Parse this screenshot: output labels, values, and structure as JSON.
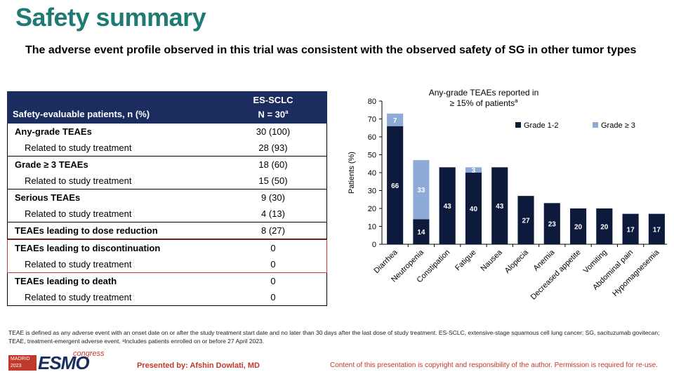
{
  "header": {
    "title": "Safety summary",
    "subtitle": "The adverse event profile observed in this trial was consistent with the observed safety of SG in other tumor types"
  },
  "table": {
    "label_header": "Safety-evaluable patients, n (%)",
    "col_header_line1": "ES-SCLC",
    "col_header_line2": "N = 30",
    "col_header_sup": "a",
    "groups": [
      {
        "highlight": false,
        "rows": [
          {
            "label": "Any-grade TEAEs",
            "value": "30 (100)",
            "type": "main"
          },
          {
            "label": "Related to study treatment",
            "value": "28 (93)",
            "type": "sub"
          }
        ]
      },
      {
        "highlight": false,
        "rows": [
          {
            "label": "Grade ≥ 3 TEAEs",
            "value": "18 (60)",
            "type": "main"
          },
          {
            "label": "Related to study treatment",
            "value": "15 (50)",
            "type": "sub"
          }
        ]
      },
      {
        "highlight": false,
        "rows": [
          {
            "label": "Serious TEAEs",
            "value": "9 (30)",
            "type": "main"
          },
          {
            "label": "Related to study treatment",
            "value": "4 (13)",
            "type": "sub"
          }
        ]
      },
      {
        "highlight": false,
        "rows": [
          {
            "label": "TEAEs leading to dose reduction",
            "value": "8 (27)",
            "type": "main"
          }
        ]
      },
      {
        "highlight": true,
        "rows": [
          {
            "label": "TEAEs leading to discontinuation",
            "value": "0",
            "type": "main"
          },
          {
            "label": "Related to study treatment",
            "value": "0",
            "type": "sub"
          }
        ]
      },
      {
        "highlight": false,
        "rows": [
          {
            "label": "TEAEs leading to death",
            "value": "0",
            "type": "main"
          },
          {
            "label": "Related to study treatment",
            "value": "0",
            "type": "sub"
          }
        ]
      }
    ]
  },
  "chart_data": {
    "type": "bar",
    "stacked": true,
    "title_line1": "Any-grade TEAEs reported in",
    "title_line2": "≥ 15% of patients",
    "title_sup": "a",
    "ylabel": "Patients (%)",
    "ylim": [
      0,
      80
    ],
    "yticks": [
      0,
      10,
      20,
      30,
      40,
      50,
      60,
      70,
      80
    ],
    "legend_position": "top-right",
    "categories": [
      "Diarrhea",
      "Neutropenia",
      "Constipation",
      "Fatigue",
      "Nausea",
      "Alopecia",
      "Anemia",
      "Decreased appetite",
      "Vomiting",
      "Abdominal pain",
      "Hypomagnesemia"
    ],
    "series": [
      {
        "name": "Grade 1-2",
        "color": "#0e1a3c",
        "values": [
          66,
          14,
          43,
          40,
          43,
          27,
          23,
          20,
          20,
          17,
          17
        ]
      },
      {
        "name": "Grade ≥ 3",
        "color": "#8eaad6",
        "values": [
          7,
          33,
          0,
          3,
          0,
          0,
          0,
          0,
          0,
          0,
          0
        ]
      }
    ]
  },
  "footer": {
    "footnote": "TEAE is defined as any adverse event with an onset date on or after the study treatment start date and no later than 30 days after the last dose of study treatment. ES-SCLC, extensive-stage squamous cell lung cancer; SG, sacituzumab govitecan; TEAE, treatment-emergent adverse event. ᵃIncludes patients enrolled on or before 27 April 2023.",
    "logo_city": "MADRID",
    "logo_year": "2023",
    "logo_name": "ESMO",
    "logo_congress": "congress",
    "presenter": "Presented by: Afshin Dowlati, MD",
    "copyright": "Content of this presentation is copyright and responsibility of the author. Permission is required for re-use."
  }
}
